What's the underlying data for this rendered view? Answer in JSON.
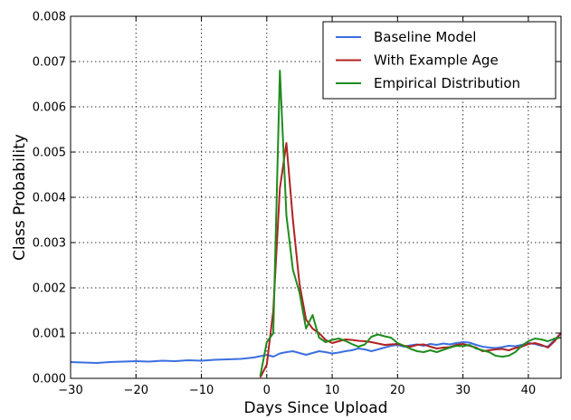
{
  "chart_data": {
    "type": "line",
    "title": "",
    "xlabel": "Days Since Upload",
    "ylabel": "Class Probability",
    "xlim": [
      -30,
      45
    ],
    "ylim": [
      0,
      0.008
    ],
    "xticks": [
      -30,
      -20,
      -10,
      0,
      10,
      20,
      30,
      40
    ],
    "yticks": [
      0.0,
      0.001,
      0.002,
      0.003,
      0.004,
      0.005,
      0.006,
      0.007,
      0.008
    ],
    "ytick_labels": [
      "0.000",
      "0.001",
      "0.002",
      "0.003",
      "0.004",
      "0.005",
      "0.006",
      "0.007",
      "0.008"
    ],
    "grid": true,
    "legend_position": "top-right",
    "series": [
      {
        "name": "Baseline Model",
        "color": "#3b6fe0",
        "x": [
          -30,
          -28,
          -26,
          -24,
          -22,
          -20,
          -18,
          -16,
          -14,
          -12,
          -10,
          -8,
          -6,
          -4,
          -2,
          -1,
          0,
          1,
          2,
          3,
          4,
          5,
          6,
          7,
          8,
          9,
          10,
          11,
          12,
          13,
          14,
          15,
          16,
          17,
          18,
          19,
          20,
          21,
          22,
          23,
          24,
          25,
          26,
          27,
          28,
          29,
          30,
          31,
          32,
          33,
          34,
          35,
          36,
          37,
          38,
          39,
          40,
          41,
          42,
          43,
          44,
          45
        ],
        "y": [
          0.00036,
          0.00035,
          0.00034,
          0.00036,
          0.00037,
          0.00038,
          0.00037,
          0.00039,
          0.00038,
          0.0004,
          0.00039,
          0.00041,
          0.00042,
          0.00043,
          0.00046,
          0.00049,
          0.00052,
          0.00048,
          0.00055,
          0.00058,
          0.0006,
          0.00056,
          0.00052,
          0.00056,
          0.0006,
          0.00058,
          0.00055,
          0.00057,
          0.0006,
          0.00062,
          0.00066,
          0.00064,
          0.0006,
          0.00064,
          0.00068,
          0.00072,
          0.00074,
          0.0007,
          0.00073,
          0.00075,
          0.00072,
          0.00076,
          0.00074,
          0.00077,
          0.00075,
          0.00078,
          0.0008,
          0.00079,
          0.00074,
          0.0007,
          0.00068,
          0.00067,
          0.00069,
          0.00072,
          0.00071,
          0.00074,
          0.00078,
          0.00076,
          0.00072,
          0.0007,
          0.00085,
          0.001
        ]
      },
      {
        "name": "With Example Age",
        "color": "#b22222",
        "x": [
          -1,
          0,
          1,
          2,
          3,
          4,
          5,
          6,
          7,
          8,
          9,
          10,
          11,
          12,
          13,
          14,
          15,
          16,
          17,
          18,
          19,
          20,
          21,
          22,
          23,
          24,
          25,
          26,
          27,
          28,
          29,
          30,
          31,
          32,
          33,
          34,
          35,
          36,
          37,
          38,
          39,
          40,
          41,
          42,
          43,
          44,
          45
        ],
        "y": [
          2e-05,
          0.0003,
          0.0015,
          0.0042,
          0.0052,
          0.0035,
          0.0021,
          0.0013,
          0.0011,
          0.001,
          0.00085,
          0.00078,
          0.00082,
          0.00086,
          0.00085,
          0.00083,
          0.00082,
          0.0008,
          0.00077,
          0.00074,
          0.00075,
          0.00076,
          0.00072,
          0.0007,
          0.00074,
          0.00075,
          0.0007,
          0.00066,
          0.00068,
          0.00069,
          0.00074,
          0.00076,
          0.00072,
          0.00068,
          0.0006,
          0.00062,
          0.00064,
          0.00065,
          0.00062,
          0.00067,
          0.0007,
          0.00076,
          0.00078,
          0.00074,
          0.00068,
          0.00082,
          0.001
        ]
      },
      {
        "name": "Empirical Distribution",
        "color": "#1e8c1e",
        "x": [
          -1,
          0,
          1,
          2,
          3,
          4,
          5,
          6,
          7,
          8,
          9,
          10,
          11,
          12,
          13,
          14,
          15,
          16,
          17,
          18,
          19,
          20,
          21,
          22,
          23,
          24,
          25,
          26,
          27,
          28,
          29,
          30,
          31,
          32,
          33,
          34,
          35,
          36,
          37,
          38,
          39,
          40,
          41,
          42,
          43,
          44,
          45
        ],
        "y": [
          5e-05,
          0.0008,
          0.001,
          0.0068,
          0.0036,
          0.0024,
          0.0019,
          0.0011,
          0.0014,
          0.0009,
          0.0008,
          0.00085,
          0.00088,
          0.00083,
          0.00076,
          0.0007,
          0.00075,
          0.00092,
          0.00097,
          0.00093,
          0.0009,
          0.00078,
          0.00072,
          0.00065,
          0.0006,
          0.00058,
          0.00062,
          0.00058,
          0.00063,
          0.00068,
          0.00072,
          0.00071,
          0.00074,
          0.00066,
          0.00062,
          0.00058,
          0.0005,
          0.00048,
          0.0005,
          0.00058,
          0.00072,
          0.00082,
          0.00088,
          0.00086,
          0.00082,
          0.00088,
          0.0009
        ]
      }
    ]
  }
}
